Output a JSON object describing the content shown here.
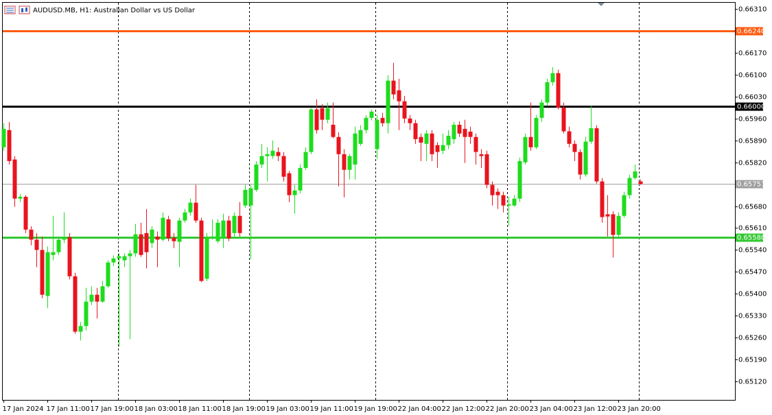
{
  "chart_data": {
    "type": "candlestick",
    "title": "AUDUSD.MB, H1:  Australian Dollar vs US Dollar",
    "categories": [
      "17 Jan 2024",
      null,
      null,
      null,
      null,
      null,
      null,
      null,
      "17 Jan 11:00",
      null,
      null,
      null,
      null,
      null,
      null,
      null,
      "17 Jan 19:00",
      null,
      null,
      null,
      null,
      null,
      null,
      null,
      "18 Jan 03:00",
      null,
      null,
      null,
      null,
      null,
      null,
      null,
      "18 Jan 11:00",
      null,
      null,
      null,
      null,
      null,
      null,
      null,
      "18 Jan 19:00",
      null,
      null,
      null,
      null,
      null,
      null,
      null,
      "19 Jan 03:00",
      null,
      null,
      null,
      null,
      null,
      null,
      null,
      "19 Jan 11:00",
      null,
      null,
      null,
      null,
      null,
      null,
      null,
      "19 Jan 19:00",
      null,
      null,
      null,
      null,
      null,
      null,
      null,
      "22 Jan 04:00",
      null,
      null,
      null,
      null,
      null,
      null,
      null,
      "22 Jan 12:00",
      null,
      null,
      null,
      null,
      null,
      null,
      null,
      "22 Jan 20:00",
      null,
      null,
      null,
      null,
      null,
      null,
      null,
      "23 Jan 04:00",
      null,
      null,
      null,
      null,
      null,
      null,
      null,
      "23 Jan 12:00",
      null,
      null,
      null,
      null,
      null,
      null,
      null,
      "23 Jan 20:00",
      null,
      null,
      null,
      null
    ],
    "open": [
      0.65868,
      0.65923,
      0.65829,
      0.65704,
      0.6571,
      0.65605,
      0.65573,
      0.6554,
      0.65393,
      0.65524,
      0.65533,
      0.65573,
      0.65581,
      0.65456,
      0.65279,
      0.65297,
      0.65375,
      0.65397,
      0.65375,
      0.65424,
      0.655,
      0.65513,
      0.65507,
      0.6552,
      0.65529,
      0.6559,
      0.65594,
      0.65562,
      0.65583,
      0.65573,
      0.65638,
      0.65579,
      0.65566,
      0.65634,
      0.6566,
      0.65691,
      0.65634,
      0.65448,
      0.65579,
      0.65568,
      0.65579,
      0.65634,
      0.65594,
      0.65649,
      0.65682,
      0.65682,
      0.65732,
      0.65813,
      0.6584,
      0.6584,
      0.65853,
      0.6584,
      0.65785,
      0.65715,
      0.6573,
      0.65802,
      0.65853,
      0.65989,
      0.65993,
      0.65956,
      0.6594,
      0.65901,
      0.65846,
      0.65796,
      0.65813,
      0.65879,
      0.65923,
      0.65962,
      0.65862,
      0.65962,
      0.65945,
      0.66081,
      0.6605,
      0.66015,
      0.6596,
      0.65945,
      0.65901,
      0.65879,
      0.65912,
      0.65875,
      0.65857,
      0.65875,
      0.65894,
      0.6594,
      0.65927,
      0.65918,
      0.65901,
      0.65846,
      0.65846,
      0.65748,
      0.65726,
      0.65715,
      0.65682,
      0.65682,
      0.65704,
      0.6582,
      0.65901,
      0.65868,
      0.65962,
      0.66011,
      0.66076,
      0.66105,
      0.65995,
      0.65919,
      0.65879,
      0.65853,
      0.65781,
      0.65886,
      0.65929,
      0.65759,
      0.65654,
      0.65654,
      0.65588,
      0.65649,
      0.65715,
      0.6577,
      0.65759
    ],
    "high": [
      0.65945,
      0.65949,
      0.6584,
      0.65719,
      0.65715,
      0.65616,
      0.65594,
      0.65583,
      0.65551,
      0.65649,
      0.65583,
      0.6566,
      0.65594,
      0.65467,
      0.6531,
      0.65419,
      0.65424,
      0.65419,
      0.65441,
      0.65507,
      0.65522,
      0.65529,
      0.65529,
      0.6554,
      0.65623,
      0.65627,
      0.65671,
      0.65616,
      0.65599,
      0.6566,
      0.65649,
      0.65594,
      0.65643,
      0.65671,
      0.65704,
      0.65748,
      0.65643,
      0.65594,
      0.65638,
      0.65638,
      0.65656,
      0.65649,
      0.6566,
      0.65693,
      0.65748,
      0.65748,
      0.65824,
      0.65879,
      0.65868,
      0.6589,
      0.65868,
      0.65853,
      0.65792,
      0.65748,
      0.65813,
      0.65868,
      0.65993,
      0.66021,
      0.66006,
      0.66011,
      0.66011,
      0.65916,
      0.65862,
      0.65846,
      0.65934,
      0.65938,
      0.65971,
      0.65989,
      0.65971,
      0.65978,
      0.66098,
      0.66138,
      0.66087,
      0.66032,
      0.65971,
      0.65956,
      0.65912,
      0.65923,
      0.65923,
      0.65884,
      0.65912,
      0.65923,
      0.65949,
      0.65951,
      0.65956,
      0.65934,
      0.65912,
      0.65862,
      0.65857,
      0.65759,
      0.65737,
      0.65726,
      0.6571,
      0.65715,
      0.65835,
      0.65912,
      0.66011,
      0.65971,
      0.66021,
      0.66087,
      0.66124,
      0.66116,
      0.66011,
      0.65934,
      0.6589,
      0.65862,
      0.65901,
      0.66,
      0.65938,
      0.6577,
      0.65715,
      0.65664,
      0.6566,
      0.65726,
      0.6578,
      0.65813,
      0.65765
    ],
    "low": [
      0.65857,
      0.65813,
      0.65678,
      0.65693,
      0.65594,
      0.65555,
      0.65485,
      0.65386,
      0.65354,
      0.65507,
      0.65524,
      0.65562,
      0.65446,
      0.65272,
      0.65251,
      0.65283,
      0.65364,
      0.65321,
      0.65371,
      0.65419,
      0.65489,
      0.65231,
      0.65485,
      0.65255,
      0.65518,
      0.65518,
      0.65481,
      0.65546,
      0.65485,
      0.65568,
      0.65568,
      0.65546,
      0.65485,
      0.65627,
      0.65649,
      0.65627,
      0.65437,
      0.65441,
      0.65573,
      0.65562,
      0.65546,
      0.65568,
      0.65583,
      0.65583,
      0.65675,
      0.65511,
      0.65726,
      0.65802,
      0.65759,
      0.65831,
      0.65824,
      0.65759,
      0.65693,
      0.65656,
      0.65721,
      0.65796,
      0.65846,
      0.65912,
      0.65923,
      0.65945,
      0.65897,
      0.65743,
      0.65708,
      0.65765,
      0.65765,
      0.65873,
      0.65912,
      0.65954,
      0.65831,
      0.65934,
      0.65912,
      0.66021,
      0.65923,
      0.65945,
      0.65923,
      0.65879,
      0.65824,
      0.65824,
      0.65824,
      0.65802,
      0.65846,
      0.65862,
      0.65879,
      0.65901,
      0.65818,
      0.65879,
      0.65813,
      0.65802,
      0.65737,
      0.65682,
      0.65671,
      0.6566,
      0.65616,
      0.65678,
      0.65693,
      0.65813,
      0.65857,
      0.65862,
      0.65949,
      0.66,
      0.66065,
      0.65989,
      0.65912,
      0.65868,
      0.65824,
      0.65765,
      0.65774,
      0.65879,
      0.65752,
      0.65627,
      0.65583,
      0.65516,
      0.65583,
      0.65643,
      0.65704,
      0.65765,
      0.65748
    ],
    "close": [
      0.65927,
      0.65824,
      0.65704,
      0.6571,
      0.65605,
      0.65573,
      0.6554,
      0.65397,
      0.65533,
      0.65533,
      0.65573,
      0.65581,
      0.65456,
      0.65279,
      0.65297,
      0.65375,
      0.65397,
      0.65375,
      0.65424,
      0.655,
      0.65513,
      0.6552,
      0.6552,
      0.65529,
      0.6559,
      0.65524,
      0.65533,
      0.65605,
      0.65573,
      0.65643,
      0.65577,
      0.65568,
      0.65634,
      0.6566,
      0.65691,
      0.65634,
      0.65441,
      0.65579,
      0.65583,
      0.65627,
      0.65634,
      0.65577,
      0.65649,
      0.65594,
      0.65732,
      0.65737,
      0.65813,
      0.6584,
      0.65846,
      0.65857,
      0.6584,
      0.65774,
      0.65715,
      0.6573,
      0.65802,
      0.65853,
      0.65989,
      0.65923,
      0.65956,
      0.65993,
      0.65901,
      0.65846,
      0.65796,
      0.6584,
      0.65912,
      0.65923,
      0.65962,
      0.65982,
      0.65956,
      0.65945,
      0.66081,
      0.66037,
      0.66015,
      0.6596,
      0.65945,
      0.65894,
      0.65883,
      0.65912,
      0.65846,
      0.65853,
      0.65875,
      0.65905,
      0.6594,
      0.65912,
      0.65901,
      0.65901,
      0.65853,
      0.6584,
      0.65748,
      0.65715,
      0.65715,
      0.65682,
      0.65686,
      0.65704,
      0.65824,
      0.65901,
      0.65868,
      0.65962,
      0.66011,
      0.66076,
      0.66105,
      0.65995,
      0.65919,
      0.65879,
      0.65853,
      0.65781,
      0.65886,
      0.65929,
      0.65759,
      0.65645,
      0.65647,
      0.65588,
      0.65649,
      0.65715,
      0.6577,
      0.65791,
      0.65751
    ],
    "up_color": "#1edc1e",
    "down_color": "#e8141e",
    "ylim": [
      0.65061,
      0.66332
    ],
    "yticks": [
      {
        "value": 0.6631,
        "label": "0.66310"
      },
      {
        "value": 0.6617,
        "label": "0.66170"
      },
      {
        "value": 0.661,
        "label": "0.66100"
      },
      {
        "value": 0.6603,
        "label": "0.66030"
      },
      {
        "value": 0.6596,
        "label": "0.65960"
      },
      {
        "value": 0.6589,
        "label": "0.65890"
      },
      {
        "value": 0.6582,
        "label": "0.65820"
      },
      {
        "value": 0.6568,
        "label": "0.65680"
      },
      {
        "value": 0.6561,
        "label": "0.65610"
      },
      {
        "value": 0.6554,
        "label": "0.65540"
      },
      {
        "value": 0.6547,
        "label": "0.65470"
      },
      {
        "value": 0.654,
        "label": "0.65400"
      },
      {
        "value": 0.6533,
        "label": "0.65330"
      },
      {
        "value": 0.6526,
        "label": "0.65260"
      },
      {
        "value": 0.6519,
        "label": "0.65190"
      },
      {
        "value": 0.6512,
        "label": "0.65120"
      }
    ],
    "levels": [
      {
        "value": 0.6624,
        "label": "0.66240",
        "color": "#ff5a0f"
      },
      {
        "value": 0.66,
        "label": "0.66000",
        "color": "#000000"
      },
      {
        "value": 0.65751,
        "label": "0.65751",
        "color": "#a0a0a0"
      },
      {
        "value": 0.6558,
        "label": "0.65580",
        "color": "#32c832"
      }
    ]
  }
}
